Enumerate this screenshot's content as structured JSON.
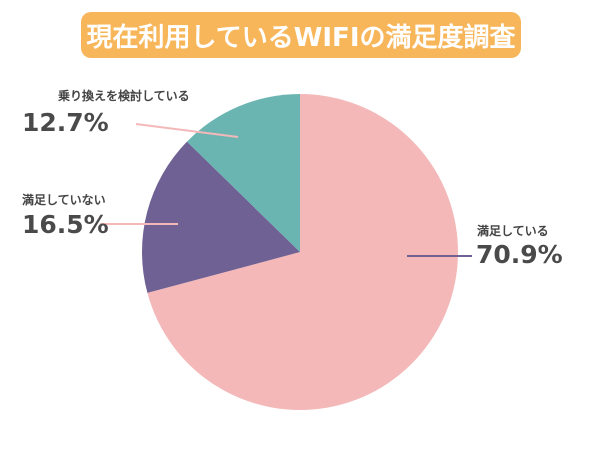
{
  "chart_data": {
    "type": "pie",
    "title": "現在利用しているWIFIの満足度調査",
    "start_angle": "12 o'clock",
    "direction": "clockwise",
    "slices": [
      {
        "label": "満足している",
        "value": 70.9,
        "display": "70.9%",
        "color": "#f4b8b8"
      },
      {
        "label": "満足していない",
        "value": 16.5,
        "display": "16.5%",
        "color": "#6f6193"
      },
      {
        "label": "乗り換えを検討している",
        "value": 12.7,
        "display": "12.7%",
        "color": "#6ab5b2"
      }
    ],
    "title_bg_color": "#f8b65a"
  }
}
